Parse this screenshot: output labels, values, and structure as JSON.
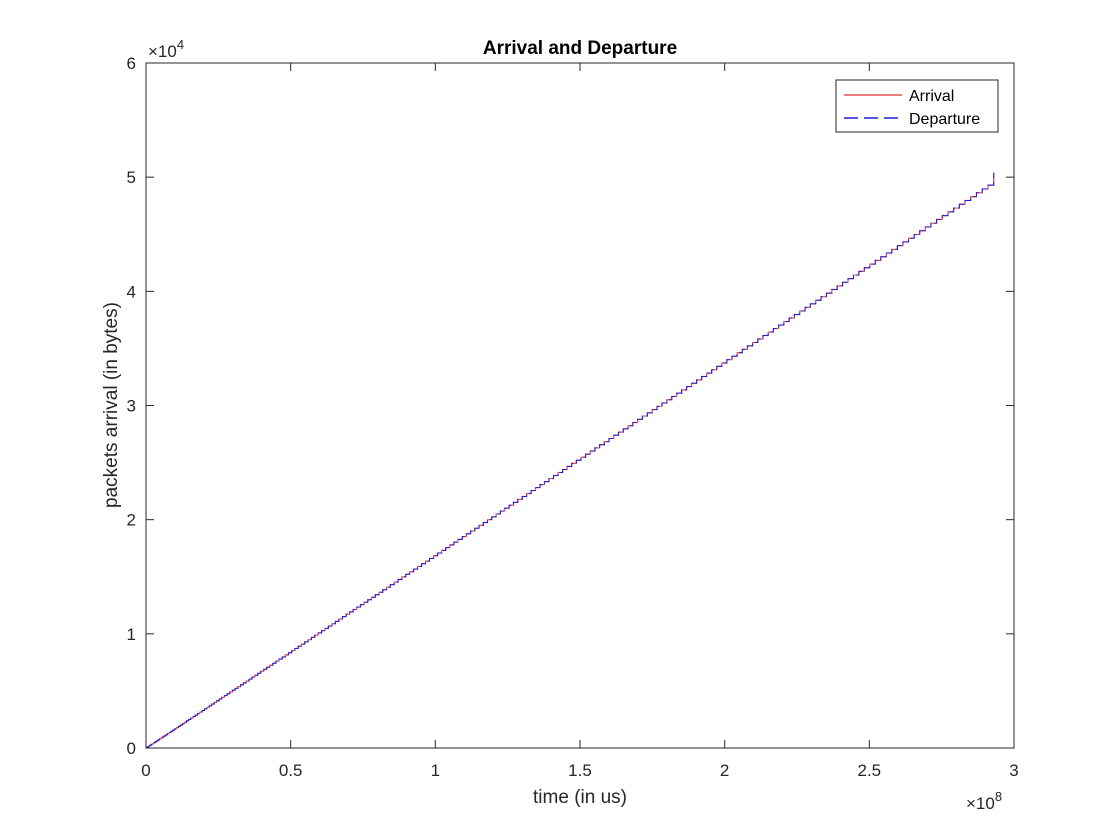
{
  "chart_data": {
    "type": "line",
    "title": "Arrival and Departure",
    "xlabel": "time (in us)",
    "ylabel": "packets arrival (in bytes)",
    "x_exponent": {
      "base": "×10",
      "power": "8"
    },
    "y_exponent": {
      "base": "×10",
      "power": "4"
    },
    "xlim": [
      0,
      300000000
    ],
    "ylim": [
      0,
      60000
    ],
    "x_ticks": [
      0,
      50000000,
      100000000,
      150000000,
      200000000,
      250000000,
      300000000
    ],
    "y_ticks": [
      0,
      10000,
      20000,
      30000,
      40000,
      50000,
      60000
    ],
    "x_tick_labels": [
      "0",
      "0.5",
      "1",
      "1.5",
      "2",
      "2.5",
      "3"
    ],
    "y_tick_labels": [
      "0",
      "1",
      "2",
      "3",
      "4",
      "5",
      "6"
    ],
    "grid": false,
    "legend_position": "top-right",
    "series": [
      {
        "name": "Arrival",
        "color": "#e8514a",
        "style": "solid",
        "shape": "staircase",
        "x": [
          0,
          293000000
        ],
        "y": [
          0,
          50400
        ]
      },
      {
        "name": "Departure",
        "color": "#1f1fd6",
        "style": "dashed",
        "shape": "staircase",
        "x": [
          0,
          293000000
        ],
        "y": [
          0,
          50400
        ]
      }
    ]
  }
}
